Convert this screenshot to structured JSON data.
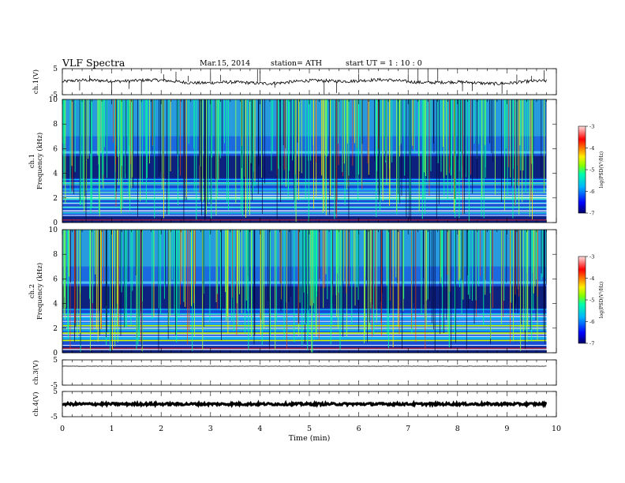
{
  "header": {
    "title": "VLF  Spectra",
    "date": "Mar.15, 2014",
    "station": "station= ATH",
    "start": "start  UT  =   1  : 10 : 0"
  },
  "chart_data": [
    {
      "type": "line",
      "panel": "ch1-waveform",
      "ylabel": "ch.1(V)",
      "ylim": [
        -5,
        5
      ],
      "xlim": [
        0,
        10
      ],
      "y_ticks": [
        "5",
        "-5"
      ],
      "x_span": [
        0,
        9.8
      ],
      "baseline": 0,
      "amplitude": 0.6,
      "spikes_x": [
        0.35,
        0.55,
        1.0,
        1.35,
        1.6,
        2.05,
        2.3,
        2.55,
        3.0,
        3.2,
        3.95,
        4.0,
        4.3,
        5.3,
        5.55,
        6.0,
        7.0,
        7.2,
        7.4,
        7.6,
        8.1,
        8.3,
        8.9,
        9.2,
        9.5,
        9.75
      ],
      "color": "#000000"
    },
    {
      "type": "heatmap",
      "panel": "ch1-spectrogram",
      "ylabel": "ch.1\nFrequency  (kHz)",
      "ylim": [
        0,
        10
      ],
      "xlim": [
        0,
        10
      ],
      "y_ticks": [
        "10",
        "8",
        "6",
        "4",
        "2",
        "0"
      ],
      "x_span": [
        0,
        9.8
      ],
      "colorbar": {
        "label": "log(PSD(V²/Hz)",
        "range": [
          -7,
          -3
        ],
        "ticks": [
          "-3",
          "-4",
          "-5",
          "-6",
          "-7"
        ]
      }
    },
    {
      "type": "heatmap",
      "panel": "ch2-spectrogram",
      "ylabel": "ch.2\nFrequency  (kHz)",
      "ylim": [
        0,
        10
      ],
      "xlim": [
        0,
        10
      ],
      "y_ticks": [
        "10",
        "8",
        "6",
        "4",
        "2",
        "0"
      ],
      "x_span": [
        0,
        9.8
      ],
      "colorbar": {
        "label": "log(PSD(V²/Hz)",
        "range": [
          -7,
          -3
        ],
        "ticks": [
          "-3",
          "-4",
          "-5",
          "-6",
          "-7"
        ]
      }
    },
    {
      "type": "line",
      "panel": "ch3-waveform",
      "ylabel": "ch.3(V)",
      "ylim": [
        -5,
        5
      ],
      "xlim": [
        0,
        10
      ],
      "y_ticks": [
        "5",
        "-5"
      ],
      "x_span": [
        0,
        9.8
      ],
      "baseline": 2.5,
      "amplitude": 0.05,
      "spikes_x": [],
      "color": "#000000"
    },
    {
      "type": "line",
      "panel": "ch4-waveform",
      "ylabel": "ch.4(V)",
      "ylim": [
        -5,
        5
      ],
      "xlim": [
        0,
        10
      ],
      "y_ticks": [
        "5",
        "-5"
      ],
      "x_span": [
        0,
        9.8
      ],
      "baseline": 0,
      "amplitude": 0.45,
      "spikes_x": [],
      "color": "#000000"
    }
  ],
  "x_axis": {
    "label": "Time  (min)",
    "ticks": [
      "0",
      "1",
      "2",
      "3",
      "4",
      "5",
      "6",
      "7",
      "8",
      "9",
      "10"
    ]
  }
}
